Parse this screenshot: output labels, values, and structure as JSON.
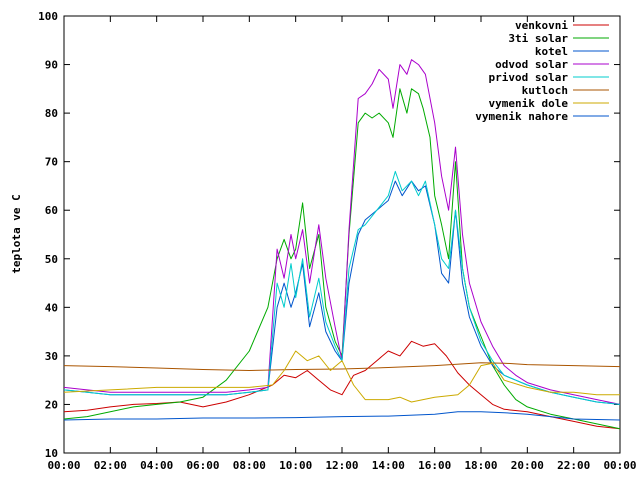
{
  "chart_data": {
    "type": "line",
    "title": "",
    "xlabel": "",
    "ylabel": "teplota ve C",
    "xlim": [
      0,
      24
    ],
    "ylim": [
      10,
      100
    ],
    "grid": false,
    "legend_position": "top-right",
    "x_ticks": [
      {
        "value": 0,
        "label": "00:00"
      },
      {
        "value": 2,
        "label": "02:00"
      },
      {
        "value": 4,
        "label": "04:00"
      },
      {
        "value": 6,
        "label": "06:00"
      },
      {
        "value": 8,
        "label": "08:00"
      },
      {
        "value": 10,
        "label": "10:00"
      },
      {
        "value": 12,
        "label": "12:00"
      },
      {
        "value": 14,
        "label": "14:00"
      },
      {
        "value": 16,
        "label": "16:00"
      },
      {
        "value": 18,
        "label": "18:00"
      },
      {
        "value": 20,
        "label": "20:00"
      },
      {
        "value": 22,
        "label": "22:00"
      },
      {
        "value": 24,
        "label": "00:00"
      }
    ],
    "y_ticks": [
      {
        "value": 10,
        "label": "10"
      },
      {
        "value": 20,
        "label": "20"
      },
      {
        "value": 30,
        "label": "30"
      },
      {
        "value": 40,
        "label": "40"
      },
      {
        "value": 50,
        "label": "50"
      },
      {
        "value": 60,
        "label": "60"
      },
      {
        "value": 70,
        "label": "70"
      },
      {
        "value": 80,
        "label": "80"
      },
      {
        "value": 90,
        "label": "90"
      },
      {
        "value": 100,
        "label": "100"
      }
    ],
    "series": [
      {
        "name": "venkovni",
        "color": "#cc0000",
        "points": [
          [
            0,
            18.5
          ],
          [
            1,
            18.8
          ],
          [
            2,
            19.5
          ],
          [
            3,
            20.0
          ],
          [
            4,
            20.2
          ],
          [
            5,
            20.5
          ],
          [
            6,
            19.5
          ],
          [
            7,
            20.5
          ],
          [
            8,
            22.0
          ],
          [
            9,
            24.0
          ],
          [
            9.5,
            26.0
          ],
          [
            10,
            25.5
          ],
          [
            10.5,
            27.0
          ],
          [
            11,
            25.0
          ],
          [
            11.5,
            23.0
          ],
          [
            12,
            22.0
          ],
          [
            12.5,
            26.0
          ],
          [
            13,
            27.0
          ],
          [
            13.5,
            29.0
          ],
          [
            14,
            31.0
          ],
          [
            14.5,
            30.0
          ],
          [
            15,
            33.0
          ],
          [
            15.5,
            32.0
          ],
          [
            16,
            32.5
          ],
          [
            16.5,
            30.0
          ],
          [
            17,
            26.5
          ],
          [
            17.5,
            24.0
          ],
          [
            18,
            22.0
          ],
          [
            18.5,
            20.0
          ],
          [
            19,
            19.0
          ],
          [
            20,
            18.5
          ],
          [
            21,
            17.5
          ],
          [
            22,
            16.5
          ],
          [
            23,
            15.5
          ],
          [
            24,
            15.0
          ]
        ]
      },
      {
        "name": "3ti solar",
        "color": "#00aa00",
        "points": [
          [
            0,
            17.0
          ],
          [
            1,
            17.5
          ],
          [
            2,
            18.5
          ],
          [
            3,
            19.5
          ],
          [
            4,
            20.0
          ],
          [
            5,
            20.5
          ],
          [
            6,
            21.5
          ],
          [
            7,
            25.0
          ],
          [
            8,
            31.0
          ],
          [
            8.8,
            40.0
          ],
          [
            9.2,
            50.0
          ],
          [
            9.5,
            54.0
          ],
          [
            9.8,
            50.0
          ],
          [
            10,
            52.0
          ],
          [
            10.3,
            61.5
          ],
          [
            10.6,
            48.0
          ],
          [
            11,
            55.0
          ],
          [
            11.3,
            40.0
          ],
          [
            11.7,
            33.0
          ],
          [
            12,
            30.0
          ],
          [
            12.3,
            55.0
          ],
          [
            12.7,
            78.0
          ],
          [
            13,
            80.0
          ],
          [
            13.3,
            79.0
          ],
          [
            13.6,
            80.0
          ],
          [
            14,
            78.0
          ],
          [
            14.2,
            75.0
          ],
          [
            14.5,
            85.0
          ],
          [
            14.8,
            80.0
          ],
          [
            15,
            85.0
          ],
          [
            15.3,
            84.0
          ],
          [
            15.5,
            81.0
          ],
          [
            15.8,
            75.0
          ],
          [
            16,
            63.0
          ],
          [
            16.3,
            57.0
          ],
          [
            16.6,
            50.0
          ],
          [
            16.9,
            70.0
          ],
          [
            17.2,
            48.0
          ],
          [
            17.5,
            40.0
          ],
          [
            18,
            34.0
          ],
          [
            18.5,
            28.0
          ],
          [
            19,
            24.0
          ],
          [
            19.5,
            21.0
          ],
          [
            20,
            19.5
          ],
          [
            21,
            18.0
          ],
          [
            22,
            17.0
          ],
          [
            23,
            16.0
          ],
          [
            24,
            15.0
          ]
        ]
      },
      {
        "name": "kotel",
        "color": "#0055cc",
        "points": [
          [
            0,
            23.0
          ],
          [
            1,
            22.5
          ],
          [
            2,
            22.0
          ],
          [
            3,
            22.0
          ],
          [
            4,
            22.0
          ],
          [
            5,
            22.0
          ],
          [
            6,
            22.0
          ],
          [
            7,
            22.0
          ],
          [
            8,
            22.5
          ],
          [
            8.8,
            23.0
          ],
          [
            9.2,
            40.0
          ],
          [
            9.5,
            45.0
          ],
          [
            9.8,
            40.0
          ],
          [
            10,
            43.0
          ],
          [
            10.3,
            49.0
          ],
          [
            10.6,
            36.0
          ],
          [
            11,
            43.0
          ],
          [
            11.3,
            35.0
          ],
          [
            11.7,
            31.0
          ],
          [
            12,
            29.0
          ],
          [
            12.3,
            45.0
          ],
          [
            12.7,
            55.0
          ],
          [
            13,
            58.0
          ],
          [
            13.5,
            60.0
          ],
          [
            14,
            62.0
          ],
          [
            14.3,
            66.0
          ],
          [
            14.6,
            63.0
          ],
          [
            15,
            66.0
          ],
          [
            15.3,
            64.0
          ],
          [
            15.6,
            65.0
          ],
          [
            16,
            57.0
          ],
          [
            16.3,
            47.0
          ],
          [
            16.6,
            45.0
          ],
          [
            16.9,
            60.0
          ],
          [
            17.2,
            45.0
          ],
          [
            17.5,
            38.0
          ],
          [
            18,
            32.0
          ],
          [
            18.5,
            28.0
          ],
          [
            19,
            26.0
          ],
          [
            19.5,
            25.0
          ],
          [
            20,
            24.0
          ],
          [
            21,
            22.5
          ],
          [
            22,
            21.5
          ],
          [
            23,
            20.5
          ],
          [
            24,
            20.0
          ]
        ]
      },
      {
        "name": "odvod solar",
        "color": "#aa00cc",
        "points": [
          [
            0,
            23.5
          ],
          [
            1,
            23.0
          ],
          [
            2,
            22.5
          ],
          [
            3,
            22.5
          ],
          [
            4,
            22.5
          ],
          [
            5,
            22.5
          ],
          [
            6,
            22.5
          ],
          [
            7,
            22.5
          ],
          [
            8,
            23.0
          ],
          [
            8.8,
            23.5
          ],
          [
            9.2,
            52.0
          ],
          [
            9.5,
            46.0
          ],
          [
            9.8,
            55.0
          ],
          [
            10,
            50.0
          ],
          [
            10.3,
            56.0
          ],
          [
            10.6,
            45.0
          ],
          [
            11,
            57.0
          ],
          [
            11.3,
            46.0
          ],
          [
            11.7,
            36.0
          ],
          [
            12,
            29.0
          ],
          [
            12.3,
            56.0
          ],
          [
            12.7,
            83.0
          ],
          [
            13,
            84.0
          ],
          [
            13.3,
            86.0
          ],
          [
            13.6,
            89.0
          ],
          [
            14,
            87.0
          ],
          [
            14.2,
            81.0
          ],
          [
            14.5,
            90.0
          ],
          [
            14.8,
            88.0
          ],
          [
            15,
            91.0
          ],
          [
            15.3,
            90.0
          ],
          [
            15.6,
            88.0
          ],
          [
            16,
            78.0
          ],
          [
            16.3,
            67.0
          ],
          [
            16.6,
            60.0
          ],
          [
            16.9,
            73.0
          ],
          [
            17.2,
            55.0
          ],
          [
            17.5,
            45.0
          ],
          [
            18,
            37.0
          ],
          [
            18.5,
            32.0
          ],
          [
            19,
            28.0
          ],
          [
            19.5,
            26.0
          ],
          [
            20,
            24.5
          ],
          [
            21,
            23.0
          ],
          [
            22,
            22.0
          ],
          [
            23,
            21.0
          ],
          [
            24,
            20.0
          ]
        ]
      },
      {
        "name": "privod solar",
        "color": "#00cccc",
        "points": [
          [
            0,
            23.0
          ],
          [
            1,
            22.5
          ],
          [
            2,
            22.0
          ],
          [
            3,
            22.0
          ],
          [
            4,
            22.0
          ],
          [
            5,
            22.0
          ],
          [
            6,
            22.0
          ],
          [
            7,
            22.0
          ],
          [
            8,
            22.5
          ],
          [
            8.8,
            23.0
          ],
          [
            9.2,
            45.0
          ],
          [
            9.5,
            40.0
          ],
          [
            9.8,
            49.0
          ],
          [
            10,
            42.0
          ],
          [
            10.3,
            50.0
          ],
          [
            10.6,
            38.0
          ],
          [
            11,
            46.0
          ],
          [
            11.3,
            37.0
          ],
          [
            11.7,
            32.0
          ],
          [
            12,
            29.0
          ],
          [
            12.3,
            48.0
          ],
          [
            12.7,
            56.0
          ],
          [
            13,
            57.0
          ],
          [
            13.5,
            60.0
          ],
          [
            14,
            63.0
          ],
          [
            14.3,
            68.0
          ],
          [
            14.6,
            64.0
          ],
          [
            15,
            66.0
          ],
          [
            15.3,
            63.0
          ],
          [
            15.6,
            66.0
          ],
          [
            16,
            57.0
          ],
          [
            16.3,
            50.0
          ],
          [
            16.6,
            48.0
          ],
          [
            16.9,
            60.0
          ],
          [
            17.2,
            48.0
          ],
          [
            17.5,
            40.0
          ],
          [
            18,
            33.0
          ],
          [
            18.5,
            29.0
          ],
          [
            19,
            26.0
          ],
          [
            19.5,
            25.0
          ],
          [
            20,
            24.0
          ],
          [
            21,
            22.5
          ],
          [
            22,
            21.5
          ],
          [
            23,
            20.5
          ],
          [
            24,
            20.0
          ]
        ]
      },
      {
        "name": "kutloch",
        "color": "#aa5500",
        "points": [
          [
            0,
            28.0
          ],
          [
            2,
            27.8
          ],
          [
            4,
            27.5
          ],
          [
            6,
            27.2
          ],
          [
            8,
            27.0
          ],
          [
            10,
            27.2
          ],
          [
            12,
            27.3
          ],
          [
            14,
            27.6
          ],
          [
            16,
            28.0
          ],
          [
            18,
            28.6
          ],
          [
            19,
            28.5
          ],
          [
            20,
            28.2
          ],
          [
            22,
            28.0
          ],
          [
            24,
            27.8
          ]
        ]
      },
      {
        "name": "vymenik dole",
        "color": "#ccaa00",
        "points": [
          [
            0,
            22.5
          ],
          [
            2,
            23.0
          ],
          [
            4,
            23.5
          ],
          [
            6,
            23.5
          ],
          [
            8,
            23.5
          ],
          [
            9,
            24.0
          ],
          [
            9.5,
            27.0
          ],
          [
            10,
            31.0
          ],
          [
            10.5,
            29.0
          ],
          [
            11,
            30.0
          ],
          [
            11.5,
            27.0
          ],
          [
            12,
            29.0
          ],
          [
            12.5,
            24.0
          ],
          [
            13,
            21.0
          ],
          [
            14,
            21.0
          ],
          [
            14.5,
            21.5
          ],
          [
            15,
            20.5
          ],
          [
            15.5,
            21.0
          ],
          [
            16,
            21.5
          ],
          [
            17,
            22.0
          ],
          [
            17.5,
            24.0
          ],
          [
            18,
            28.0
          ],
          [
            18.5,
            28.5
          ],
          [
            19,
            25.0
          ],
          [
            20,
            23.5
          ],
          [
            21,
            22.5
          ],
          [
            22,
            22.5
          ],
          [
            23,
            22.0
          ],
          [
            24,
            22.0
          ]
        ]
      },
      {
        "name": "vymenik nahore",
        "color": "#0055cc",
        "points": [
          [
            0,
            16.8
          ],
          [
            2,
            17.0
          ],
          [
            4,
            17.0
          ],
          [
            6,
            17.2
          ],
          [
            8,
            17.2
          ],
          [
            10,
            17.3
          ],
          [
            12,
            17.5
          ],
          [
            14,
            17.6
          ],
          [
            16,
            18.0
          ],
          [
            17,
            18.5
          ],
          [
            18,
            18.5
          ],
          [
            19,
            18.3
          ],
          [
            20,
            18.0
          ],
          [
            22,
            17.0
          ],
          [
            24,
            16.8
          ]
        ]
      }
    ]
  }
}
